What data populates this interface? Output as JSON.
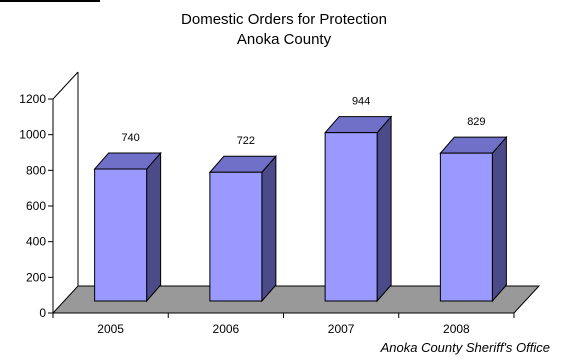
{
  "chart_data": {
    "type": "bar",
    "title": "Domestic Orders for Protection",
    "subtitle": "Anoka County",
    "source": "Anoka County Sheriff's Office",
    "categories": [
      "2005",
      "2006",
      "2007",
      "2008"
    ],
    "values": [
      740,
      722,
      944,
      829
    ],
    "data_labels": [
      "740",
      "722",
      "944",
      "829"
    ],
    "y_ticks": [
      "0",
      "200",
      "400",
      "600",
      "800",
      "1000",
      "1200"
    ],
    "ylim": [
      0,
      1200
    ],
    "style": "3d-column",
    "grid": false,
    "legend": "none",
    "colors": {
      "bar_front": "#9999ff",
      "bar_side": "#4b4b8a",
      "bar_top": "#7070c8",
      "floor": "#999999",
      "axis": "#000000"
    }
  }
}
